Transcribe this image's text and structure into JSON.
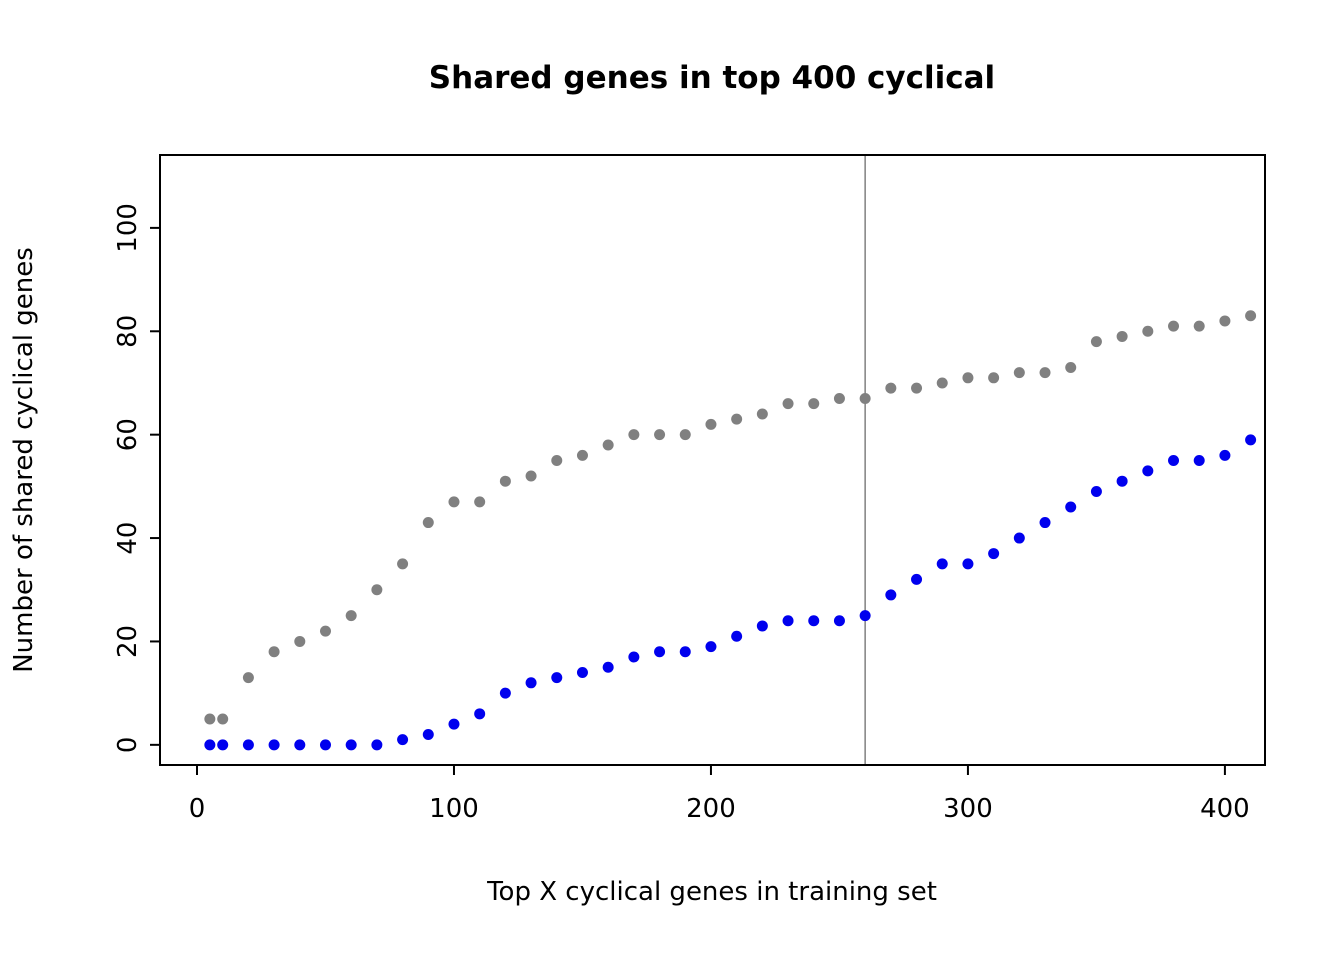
{
  "title": "Shared genes in top 400 cyclical",
  "chart_data": {
    "type": "scatter",
    "title": "Shared genes in top 400 cyclical",
    "xlabel": "Top X cyclical genes in training set",
    "ylabel": "Number of shared cyclical genes",
    "xlim": [
      -14.4,
      415.6
    ],
    "ylim": [
      -3.9,
      114.1
    ],
    "xticks": [
      0,
      100,
      200,
      300,
      400
    ],
    "yticks": [
      0,
      20,
      40,
      60,
      80,
      100
    ],
    "grid": false,
    "legend": "none",
    "vline_x": 260,
    "vline_color": "#808080",
    "background_color": "#ffffff",
    "x": [
      5,
      10,
      20,
      30,
      40,
      50,
      60,
      70,
      80,
      90,
      100,
      110,
      120,
      130,
      140,
      150,
      160,
      170,
      180,
      190,
      200,
      210,
      220,
      230,
      240,
      250,
      260,
      270,
      280,
      290,
      300,
      310,
      320,
      330,
      340,
      350,
      360,
      370,
      380,
      390,
      400,
      410
    ],
    "series": [
      {
        "name": "gray-series",
        "color": "#808080",
        "values": [
          5,
          5,
          13,
          18,
          20,
          22,
          25,
          30,
          35,
          43,
          47,
          47,
          51,
          52,
          55,
          56,
          58,
          60,
          60,
          60,
          62,
          63,
          64,
          66,
          66,
          67,
          67,
          69,
          69,
          70,
          71,
          71,
          72,
          72,
          73,
          78,
          79,
          80,
          81,
          81,
          82,
          83
        ]
      },
      {
        "name": "blue-series",
        "color": "#0000EE",
        "values": [
          0,
          0,
          0,
          0,
          0,
          0,
          0,
          0,
          1,
          2,
          4,
          6,
          10,
          12,
          13,
          14,
          15,
          17,
          18,
          18,
          19,
          21,
          23,
          24,
          24,
          24,
          25,
          29,
          32,
          35,
          35,
          37,
          40,
          43,
          46,
          49,
          51,
          53,
          55,
          55,
          56,
          59
        ]
      }
    ]
  }
}
